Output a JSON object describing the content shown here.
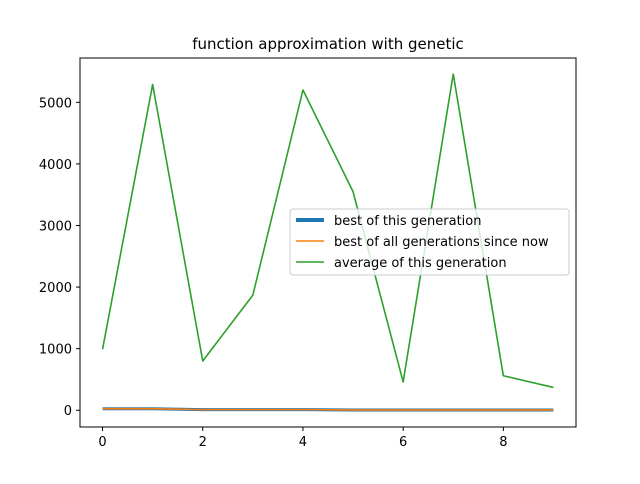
{
  "chart_data": {
    "type": "line",
    "title": "function approximation with genetic",
    "xlabel": "",
    "ylabel": "",
    "xlim": [
      -0.45,
      9.45
    ],
    "ylim": [
      -272,
      5720
    ],
    "xticks": [
      0,
      2,
      4,
      6,
      8
    ],
    "yticks": [
      0,
      1000,
      2000,
      3000,
      4000,
      5000
    ],
    "grid": false,
    "legend_position": "center-right",
    "x": [
      0,
      1,
      2,
      3,
      4,
      5,
      6,
      7,
      8,
      9
    ],
    "series": [
      {
        "name": "best of this generation",
        "color": "#1f77b4",
        "linewidth": "thick",
        "values": [
          25,
          25,
          10,
          10,
          10,
          5,
          5,
          5,
          5,
          5
        ]
      },
      {
        "name": "best of all generations since now",
        "color": "#ff7f0e",
        "linewidth": "normal",
        "values": [
          25,
          25,
          10,
          10,
          10,
          5,
          5,
          5,
          5,
          5
        ]
      },
      {
        "name": "average of this generation",
        "color": "#2ca02c",
        "linewidth": "normal",
        "values": [
          990,
          5290,
          800,
          1870,
          5200,
          3550,
          460,
          5460,
          560,
          370
        ]
      }
    ]
  }
}
